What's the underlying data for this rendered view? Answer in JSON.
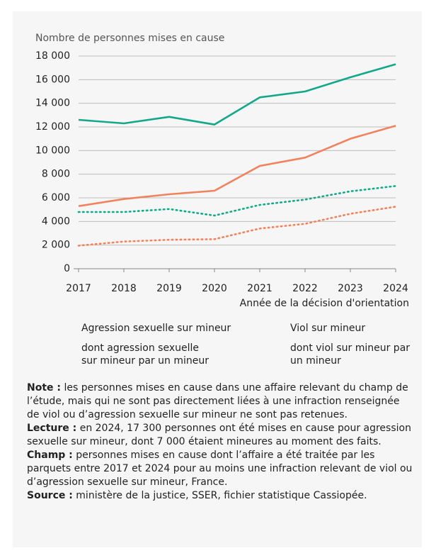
{
  "chart_data": {
    "type": "line",
    "y_axis_label": "Nombre de personnes mises en cause",
    "x_axis_label": "Année de la décision d'orientation",
    "categories": [
      "2017",
      "2018",
      "2019",
      "2020",
      "2021",
      "2022",
      "2023",
      "2024"
    ],
    "ylim": [
      0,
      18000
    ],
    "yticks": [
      0,
      {
        "value": 2000,
        "label": "2 000"
      },
      {
        "value": 4000,
        "label": "4 000"
      },
      {
        "value": 6000,
        "label": "6 000"
      },
      {
        "value": 8000,
        "label": "8 000"
      },
      {
        "value": 10000,
        "label": "10 000"
      },
      {
        "value": 12000,
        "label": "12 000"
      },
      {
        "value": 14000,
        "label": "14 000"
      },
      {
        "value": 16000,
        "label": "16 000"
      },
      {
        "value": 18000,
        "label": "18 000"
      }
    ],
    "grid": true,
    "series": [
      {
        "name": "Agression sexuelle sur mineur",
        "color": "#14a88b",
        "dash": "solid",
        "values": [
          12600,
          12300,
          12850,
          12200,
          14500,
          15000,
          16200,
          17300
        ]
      },
      {
        "name": "Viol sur mineur",
        "color": "#f0825e",
        "dash": "solid",
        "values": [
          5300,
          5900,
          6300,
          6600,
          8700,
          9400,
          11000,
          12100
        ]
      },
      {
        "name": "dont agression sexuelle sur mineur par un mineur",
        "color": "#14a88b",
        "dash": "dotted",
        "values": [
          4800,
          4800,
          5050,
          4500,
          5400,
          5850,
          6550,
          7000
        ]
      },
      {
        "name": "dont viol sur mineur par un mineur",
        "color": "#f0825e",
        "dash": "dotted",
        "values": [
          1950,
          2300,
          2450,
          2500,
          3400,
          3800,
          4650,
          5250
        ]
      }
    ]
  },
  "notes": [
    {
      "label": "Note :",
      "text": "les personnes mises en cause dans une affaire relevant du champ de l’étude, mais qui ne sont pas directement liées à une infraction renseignée de viol ou d’agression sexuelle sur mineur ne sont pas retenues."
    },
    {
      "label": "Lecture :",
      "text": "en 2024, 17 300 personnes ont été mises en cause pour agression sexuelle sur mineur, dont 7 000 étaient mineures au moment des faits."
    },
    {
      "label": "Champ :",
      "text": "personnes mises en cause dont l’affaire a été traitée par les parquets entre 2017 et 2024 pour au moins une infraction relevant de viol ou d’agression sexuelle sur mineur, France."
    },
    {
      "label": "Source :",
      "text": "ministère de la justice, SSER, fichier statistique Cassiopée."
    }
  ]
}
